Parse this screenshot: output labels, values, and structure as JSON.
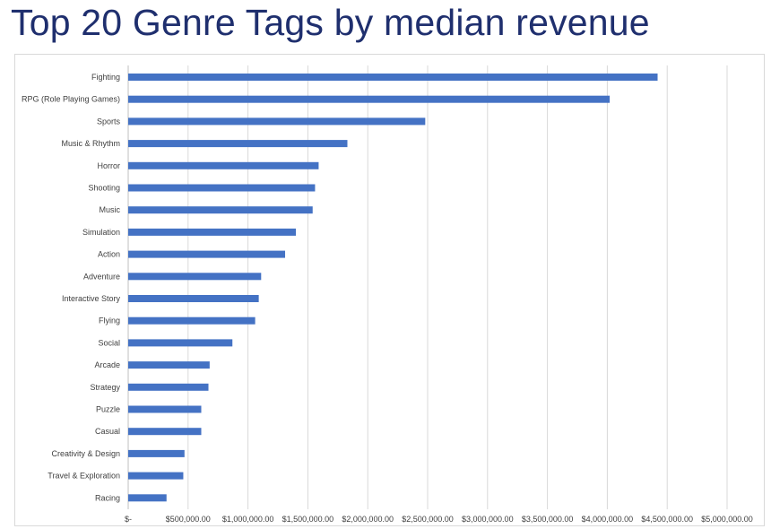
{
  "title": "Top 20 Genre Tags by median revenue",
  "chart_data": {
    "type": "bar",
    "orientation": "horizontal",
    "categories": [
      "Fighting",
      "RPG (Role Playing Games)",
      "Sports",
      "Music & Rhythm",
      "Horror",
      "Shooting",
      "Music",
      "Simulation",
      "Action",
      "Adventure",
      "Interactive Story",
      "Flying",
      "Social",
      "Arcade",
      "Strategy",
      "Puzzle",
      "Casual",
      "Creativity & Design",
      "Travel & Exploration",
      "Racing"
    ],
    "values": [
      4420000,
      4020000,
      2480000,
      1830000,
      1590000,
      1560000,
      1540000,
      1400000,
      1310000,
      1110000,
      1090000,
      1060000,
      870000,
      680000,
      670000,
      610000,
      610000,
      470000,
      460000,
      320000
    ],
    "xlim": [
      0,
      5000000
    ],
    "xticks": [
      0,
      500000,
      1000000,
      1500000,
      2000000,
      2500000,
      3000000,
      3500000,
      4000000,
      4500000,
      5000000
    ],
    "xtick_labels": [
      "$-",
      "$500,000.00",
      "$1,000,000.00",
      "$1,500,000.00",
      "$2,000,000.00",
      "$2,500,000.00",
      "$3,000,000.00",
      "$3,500,000.00",
      "$4,000,000.00",
      "$4,500,000.00",
      "$5,000,000.00"
    ],
    "bar_color": "#4472c4",
    "grid": true,
    "legend": "none"
  }
}
